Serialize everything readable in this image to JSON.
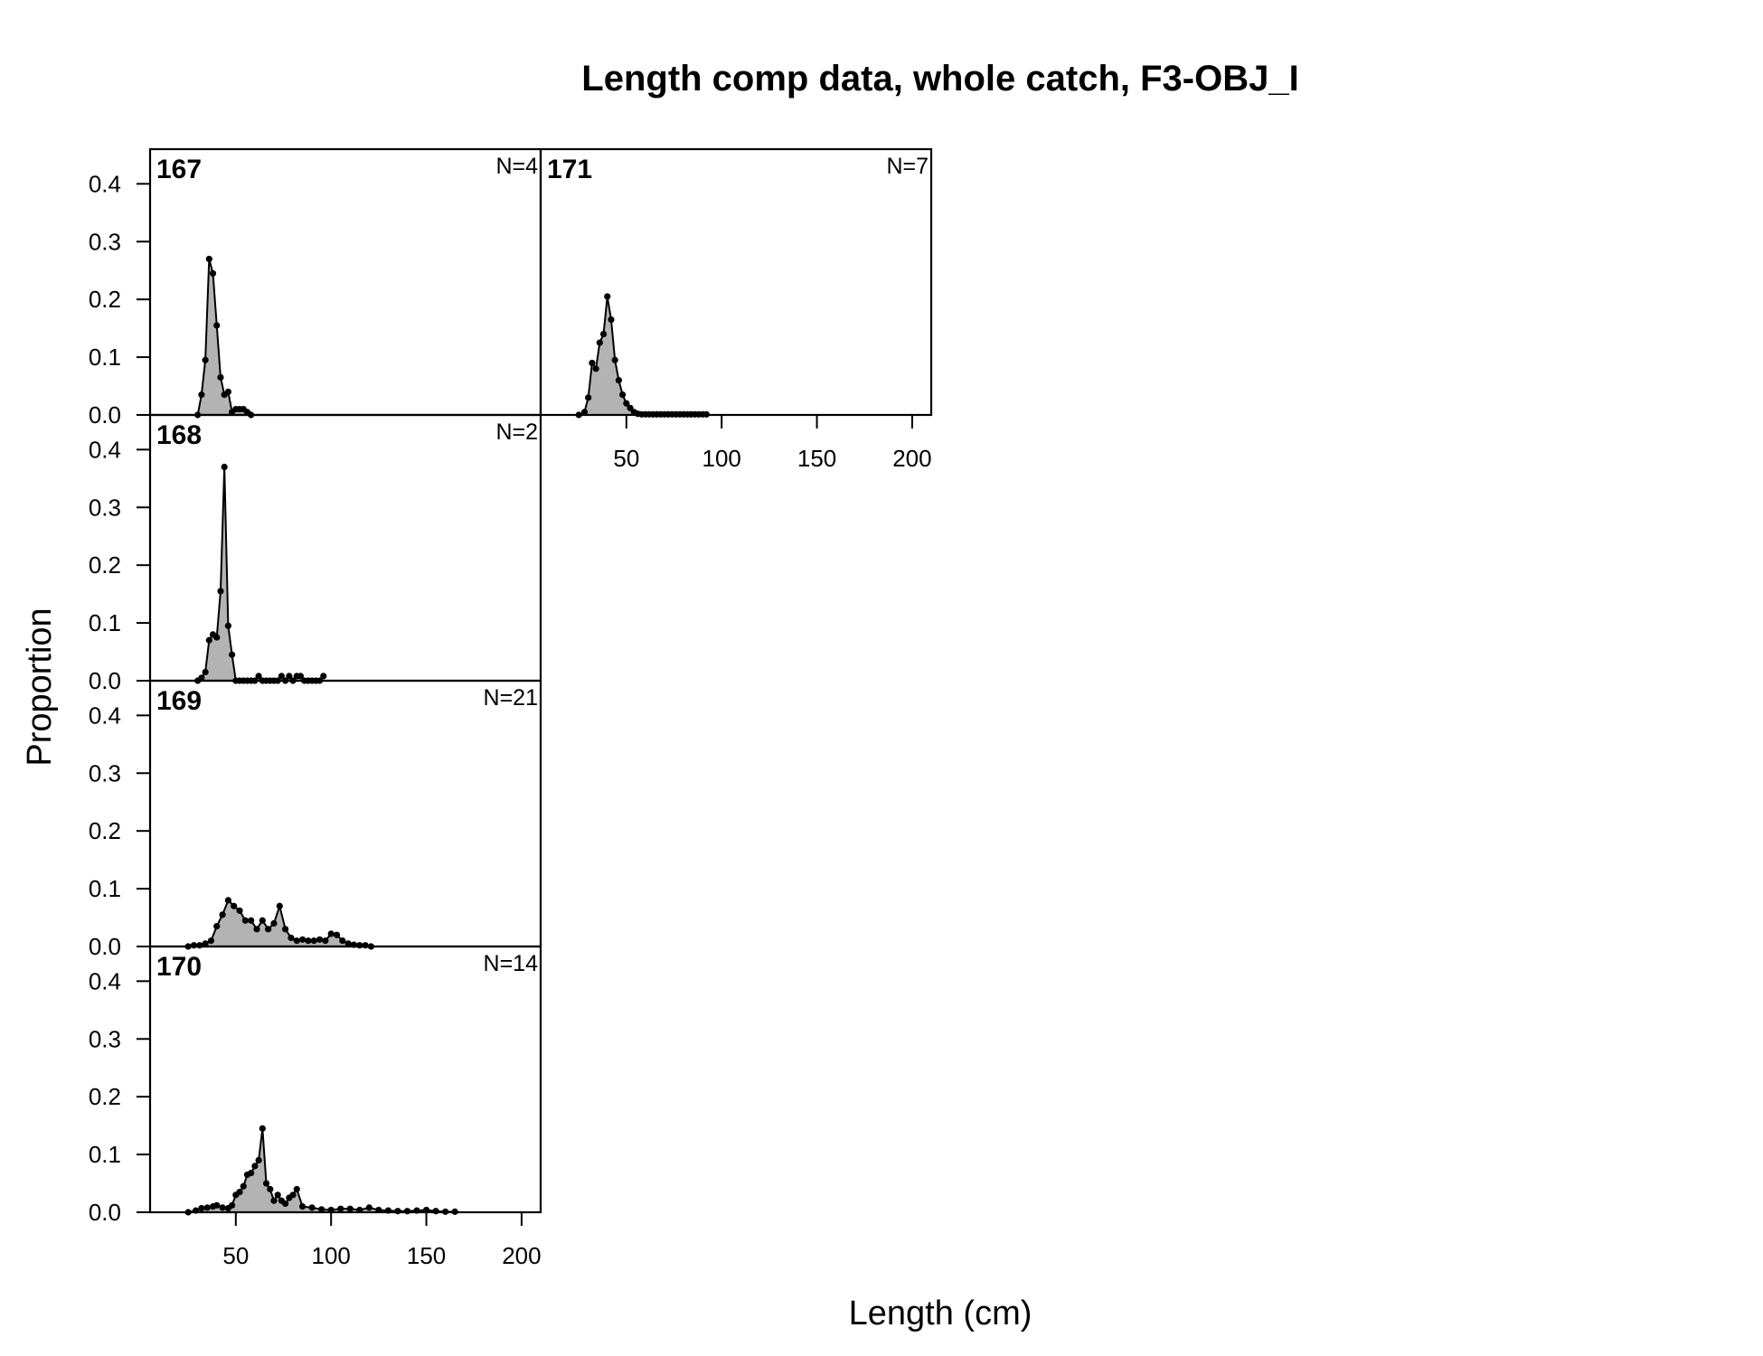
{
  "chart_data": {
    "type": "area",
    "title": "Length comp data, whole catch, F3-OBJ_I",
    "xlabel": "Length (cm)",
    "ylabel": "Proportion",
    "xlim": [
      5,
      210
    ],
    "ylim": [
      0,
      0.46
    ],
    "x_ticks": [
      "50",
      "100",
      "150",
      "200"
    ],
    "y_ticks": [
      "0.0",
      "0.1",
      "0.2",
      "0.3",
      "0.4"
    ],
    "fill_color": "#b3b3b3",
    "line_color": "#000000",
    "panels": [
      {
        "label": "167",
        "n_label": "N=4",
        "x": [
          30,
          32,
          34,
          36,
          38,
          40,
          42,
          44,
          46,
          48,
          50,
          52,
          54,
          56,
          58
        ],
        "y": [
          0.0,
          0.035,
          0.095,
          0.27,
          0.245,
          0.155,
          0.065,
          0.035,
          0.04,
          0.005,
          0.01,
          0.01,
          0.01,
          0.005,
          0.0
        ]
      },
      {
        "label": "168",
        "n_label": "N=2",
        "x": [
          30,
          32,
          34,
          36,
          38,
          40,
          42,
          44,
          46,
          48,
          50,
          52,
          54,
          56,
          58,
          60,
          62,
          64,
          66,
          68,
          70,
          72,
          74,
          76,
          78,
          80,
          82,
          84,
          86,
          88,
          90,
          92,
          94,
          96
        ],
        "y": [
          0.0,
          0.005,
          0.015,
          0.07,
          0.08,
          0.075,
          0.155,
          0.37,
          0.095,
          0.045,
          0.0,
          0.0,
          0.0,
          0.0,
          0.0,
          0.0,
          0.008,
          0.0,
          0.0,
          0.0,
          0.0,
          0.0,
          0.008,
          0.0,
          0.008,
          0.0,
          0.008,
          0.008,
          0.0,
          0.0,
          0.0,
          0.0,
          0.0,
          0.008
        ]
      },
      {
        "label": "169",
        "n_label": "N=21",
        "x": [
          25,
          28,
          31,
          34,
          37,
          40,
          43,
          46,
          49,
          52,
          55,
          58,
          61,
          64,
          67,
          70,
          73,
          76,
          79,
          82,
          85,
          88,
          91,
          94,
          97,
          100,
          103,
          106,
          109,
          112,
          115,
          118,
          121
        ],
        "y": [
          0.0,
          0.002,
          0.002,
          0.005,
          0.01,
          0.035,
          0.055,
          0.08,
          0.07,
          0.062,
          0.045,
          0.045,
          0.03,
          0.045,
          0.03,
          0.04,
          0.07,
          0.03,
          0.015,
          0.01,
          0.012,
          0.01,
          0.01,
          0.012,
          0.01,
          0.022,
          0.02,
          0.01,
          0.005,
          0.003,
          0.002,
          0.002,
          0.0
        ]
      },
      {
        "label": "170",
        "n_label": "N=14",
        "x": [
          25,
          29,
          32,
          35,
          38,
          40,
          43,
          46,
          48,
          50,
          52,
          54,
          56,
          58,
          60,
          62,
          64,
          66,
          68,
          70,
          72,
          74,
          76,
          78,
          80,
          82,
          85,
          90,
          95,
          100,
          105,
          110,
          115,
          120,
          125,
          130,
          135,
          140,
          145,
          150,
          155,
          160,
          165
        ],
        "y": [
          0.0,
          0.003,
          0.007,
          0.008,
          0.01,
          0.012,
          0.008,
          0.007,
          0.012,
          0.03,
          0.035,
          0.045,
          0.065,
          0.068,
          0.08,
          0.09,
          0.145,
          0.05,
          0.04,
          0.02,
          0.03,
          0.02,
          0.015,
          0.025,
          0.03,
          0.04,
          0.01,
          0.008,
          0.005,
          0.004,
          0.006,
          0.006,
          0.004,
          0.008,
          0.004,
          0.003,
          0.002,
          0.002,
          0.003,
          0.004,
          0.002,
          0.001,
          0.001
        ]
      },
      {
        "label": "171",
        "n_label": "N=7",
        "x": [
          25,
          28,
          30,
          32,
          34,
          36,
          38,
          40,
          42,
          44,
          46,
          48,
          50,
          52,
          54,
          56,
          58,
          60,
          62,
          64,
          66,
          68,
          70,
          72,
          74,
          76,
          78,
          80,
          82,
          84,
          86,
          88,
          90,
          92
        ],
        "y": [
          0.0,
          0.005,
          0.03,
          0.09,
          0.08,
          0.125,
          0.14,
          0.205,
          0.165,
          0.095,
          0.06,
          0.035,
          0.02,
          0.012,
          0.005,
          0.002,
          0.001,
          0.001,
          0.001,
          0.001,
          0.001,
          0.001,
          0.001,
          0.001,
          0.001,
          0.001,
          0.001,
          0.001,
          0.001,
          0.001,
          0.001,
          0.001,
          0.001,
          0.001
        ]
      }
    ]
  }
}
